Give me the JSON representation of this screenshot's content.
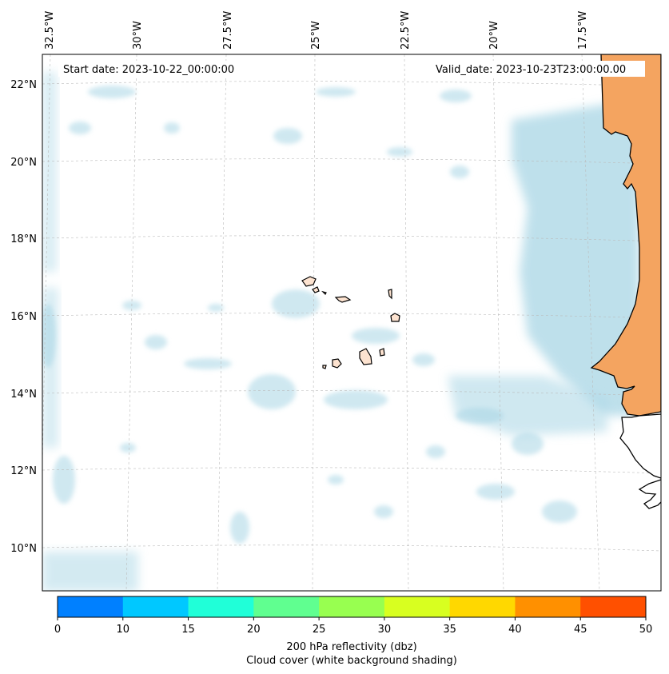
{
  "map": {
    "start_date_text": "Start date: 2023-10-22_00:00:00",
    "valid_date_text": "Valid_date: 2023-10-23T23:00:00.00",
    "lon_labels": [
      "32.5°W",
      "30°W",
      "27.5°W",
      "25°W",
      "22.5°W",
      "20°W",
      "17.5°W"
    ],
    "lat_labels": [
      "22°N",
      "20°N",
      "18°N",
      "16°N",
      "14°N",
      "12°N",
      "10°N"
    ],
    "land_color": "#f4a460",
    "island_color": "#fde3d0",
    "cloud_color": "#a9d6e5"
  },
  "colorbar": {
    "ticks": [
      "0",
      "10",
      "15",
      "20",
      "25",
      "30",
      "35",
      "40",
      "45",
      "50"
    ],
    "colors": [
      "#0080ff",
      "#00c8ff",
      "#20ffd8",
      "#60ff90",
      "#98ff50",
      "#d8ff20",
      "#ffd800",
      "#ff9000",
      "#ff5000"
    ],
    "label_line1": "200 hPa reflectivity (dbz)",
    "label_line2": "Cloud cover (white background shading)"
  }
}
